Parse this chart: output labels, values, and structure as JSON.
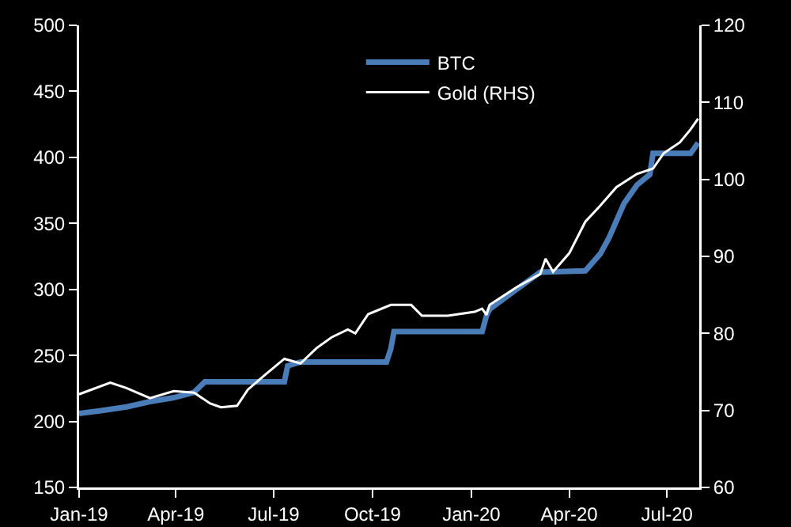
{
  "chart_data": {
    "type": "line",
    "xlim": [
      "2019-01-01",
      "2020-07-31"
    ],
    "xticks": [
      {
        "value": "2019-01-01",
        "label": "Jan-19"
      },
      {
        "value": "2019-04-01",
        "label": "Apr-19"
      },
      {
        "value": "2019-07-01",
        "label": "Jul-19"
      },
      {
        "value": "2019-10-01",
        "label": "Oct-19"
      },
      {
        "value": "2020-01-01",
        "label": "Jan-20"
      },
      {
        "value": "2020-04-01",
        "label": "Apr-20"
      },
      {
        "value": "2020-07-01",
        "label": "Jul-20"
      }
    ],
    "ylim": [
      150,
      500
    ],
    "yticks": [
      150,
      200,
      250,
      300,
      350,
      400,
      450,
      500
    ],
    "y2lim": [
      60,
      120
    ],
    "y2ticks": [
      60,
      70,
      80,
      90,
      100,
      110,
      120
    ],
    "grid": false,
    "legend": "top",
    "marker": "none",
    "line_style": "solid",
    "series": [
      {
        "name": "BTC",
        "color": "#4a7db8",
        "x": [
          "2019-01-01",
          "2019-01-20",
          "2019-02-14",
          "2019-03-08",
          "2019-03-30",
          "2019-04-18",
          "2019-04-28",
          "2019-07-11",
          "2019-07-14",
          "2019-07-26",
          "2019-10-14",
          "2019-10-18",
          "2019-10-21",
          "2020-01-11",
          "2020-01-15",
          "2020-01-18",
          "2020-02-12",
          "2020-03-05",
          "2020-04-16",
          "2020-04-30",
          "2020-05-08",
          "2020-05-22",
          "2020-06-03",
          "2020-06-15",
          "2020-06-18",
          "2020-07-23",
          "2020-07-30"
        ],
        "values": [
          206,
          208,
          211,
          215,
          218,
          222,
          230,
          230,
          242,
          245,
          245,
          255,
          268,
          268,
          280,
          285,
          300,
          313,
          314,
          327,
          339,
          365,
          379,
          387,
          403,
          403,
          411
        ]
      },
      {
        "name": "Gold (RHS)",
        "color": "#ffffff",
        "axis": "y2",
        "x": [
          "2019-01-01",
          "2019-01-30",
          "2019-02-14",
          "2019-03-08",
          "2019-03-30",
          "2019-04-18",
          "2019-05-03",
          "2019-05-13",
          "2019-05-28",
          "2019-06-07",
          "2019-06-22",
          "2019-07-11",
          "2019-07-26",
          "2019-08-10",
          "2019-08-24",
          "2019-09-08",
          "2019-09-15",
          "2019-09-27",
          "2019-10-18",
          "2019-11-06",
          "2019-11-16",
          "2019-12-10",
          "2020-01-04",
          "2020-01-11",
          "2020-01-15",
          "2020-01-18",
          "2020-02-12",
          "2020-03-05",
          "2020-03-10",
          "2020-03-17",
          "2020-04-01",
          "2020-04-16",
          "2020-04-30",
          "2020-05-15",
          "2020-06-03",
          "2020-06-18",
          "2020-06-28",
          "2020-07-13",
          "2020-07-23",
          "2020-07-30"
        ],
        "values": [
          72.1,
          73.6,
          72.9,
          71.6,
          72.5,
          72.3,
          70.9,
          70.4,
          70.6,
          72.7,
          74.5,
          76.7,
          76.1,
          78.1,
          79.5,
          80.5,
          80.0,
          82.5,
          83.7,
          83.7,
          82.3,
          82.3,
          82.8,
          83.2,
          82.4,
          83.7,
          86.0,
          87.7,
          89.7,
          88.0,
          90.4,
          94.5,
          96.6,
          99.0,
          100.7,
          101.4,
          103.4,
          104.8,
          106.5,
          107.9
        ]
      }
    ]
  }
}
